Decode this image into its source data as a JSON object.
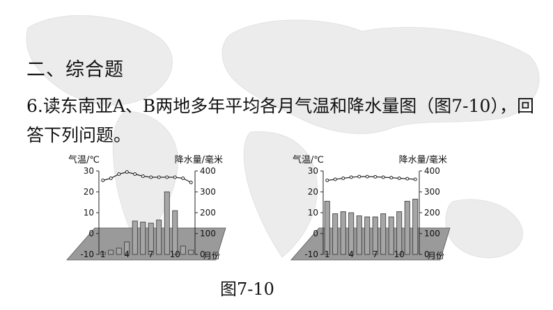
{
  "section_title": "二、综合题",
  "question_text": "6.读东南亚A、B两地多年平均各月气温和降水量图（图7-10），回答下列问题。",
  "figure_caption": "图7-10",
  "colors": {
    "bar_fill": "#a6a6a6",
    "ground_fill": "#9a9a9a",
    "line": "#222222"
  },
  "chart_data": [
    {
      "type": "bar+line",
      "left_axis_label": "气温/℃",
      "right_axis_label": "降水量/毫米",
      "x_unit_label": "月份",
      "months": [
        1,
        2,
        3,
        4,
        5,
        6,
        7,
        8,
        9,
        10,
        11,
        12
      ],
      "x_tick_labels": [
        "1",
        "4",
        "7",
        "10"
      ],
      "temperature_ylim": [
        -10,
        30
      ],
      "temperature_ticks": [
        "30",
        "20",
        "10",
        "0",
        "-10"
      ],
      "precipitation_ylim": [
        0,
        400
      ],
      "precipitation_ticks": [
        "400",
        "300",
        "200",
        "100",
        "0"
      ],
      "temperature": [
        25.5,
        26.5,
        28.5,
        29.5,
        28.5,
        27.5,
        27,
        27,
        27,
        27,
        26.5,
        24.5
      ],
      "precipitation": [
        10,
        20,
        30,
        60,
        160,
        155,
        150,
        165,
        300,
        210,
        40,
        20
      ]
    },
    {
      "type": "bar+line",
      "left_axis_label": "气温/℃",
      "right_axis_label": "降水量/毫米",
      "x_unit_label": "月份",
      "months": [
        1,
        2,
        3,
        4,
        5,
        6,
        7,
        8,
        9,
        10,
        11,
        12
      ],
      "x_tick_labels": [
        "1",
        "4",
        "7",
        "10"
      ],
      "temperature_ylim": [
        -10,
        30
      ],
      "temperature_ticks": [
        "30",
        "20",
        "10",
        "0",
        "-10"
      ],
      "precipitation_ylim": [
        0,
        400
      ],
      "precipitation_ticks": [
        "400",
        "300",
        "200",
        "100",
        "0"
      ],
      "temperature": [
        25.5,
        26,
        26.5,
        27,
        27.3,
        27.3,
        27.2,
        27,
        26.8,
        26.5,
        26.3,
        26
      ],
      "precipitation": [
        255,
        195,
        205,
        200,
        185,
        180,
        180,
        195,
        180,
        205,
        255,
        265
      ]
    }
  ]
}
